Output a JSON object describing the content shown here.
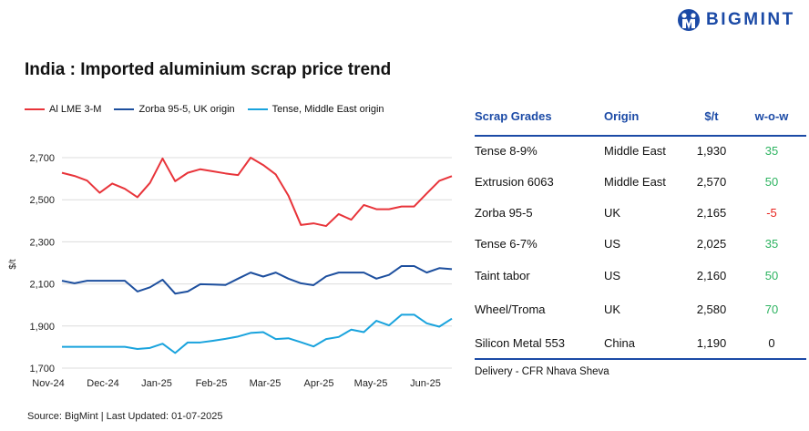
{
  "brand": {
    "name": "BIGMINT",
    "color": "#1b4aa6"
  },
  "title": "India : Imported aluminium scrap price trend",
  "source": "Source: BigMint | Last Updated: 01-07-2025",
  "chart_data": {
    "type": "line",
    "title": "India : Imported aluminium scrap price trend",
    "ylabel": "$/t",
    "ylim": [
      1700,
      2700
    ],
    "yticks": [
      "1,700",
      "1,900",
      "2,100",
      "2,300",
      "2,500",
      "2,700"
    ],
    "ytick_values": [
      1700,
      1900,
      2100,
      2300,
      2500,
      2700
    ],
    "xtick_labels": [
      "Nov-24",
      "Dec-24",
      "Jan-25",
      "Feb-25",
      "Mar-25",
      "Apr-25",
      "May-25",
      "Jun-25"
    ],
    "grid": "horizontal",
    "legend": "top-left",
    "series": [
      {
        "name": "Al LME 3-M",
        "color": "#e8343a",
        "values": [
          2628,
          2613,
          2591,
          2533,
          2577,
          2552,
          2512,
          2580,
          2696,
          2588,
          2628,
          2645,
          2635,
          2625,
          2617,
          2700,
          2665,
          2620,
          2520,
          2380,
          2388,
          2375,
          2432,
          2405,
          2475,
          2455,
          2455,
          2468,
          2468,
          2530,
          2590,
          2612
        ]
      },
      {
        "name": "Zorba 95-5, UK origin",
        "color": "#1d4f9e",
        "values": [
          2115,
          2103,
          2115,
          2115,
          2115,
          2115,
          2064,
          2084,
          2120,
          2054,
          2064,
          2099,
          2097,
          2095,
          2125,
          2154,
          2135,
          2154,
          2125,
          2103,
          2094,
          2136,
          2154,
          2154,
          2154,
          2125,
          2143,
          2185,
          2185,
          2154,
          2175,
          2170
        ]
      },
      {
        "name": "Tense, Middle East origin",
        "color": "#19a3dd",
        "values": [
          1801,
          1801,
          1801,
          1801,
          1801,
          1801,
          1791,
          1796,
          1816,
          1772,
          1822,
          1822,
          1830,
          1839,
          1850,
          1867,
          1871,
          1838,
          1842,
          1823,
          1803,
          1838,
          1848,
          1883,
          1871,
          1925,
          1903,
          1954,
          1954,
          1913,
          1897,
          1935
        ]
      }
    ]
  },
  "table": {
    "headers": [
      "Scrap Grades",
      "Origin",
      "$/t",
      "w-o-w"
    ],
    "rows": [
      [
        "Tense 8-9%",
        "Middle East",
        "1,930",
        "35"
      ],
      [
        "Extrusion 6063",
        "Middle East",
        "2,570",
        "50"
      ],
      [
        "Zorba 95-5",
        "UK",
        "2,165",
        "-5"
      ],
      [
        "Tense 6-7%",
        "US",
        "2,025",
        "35"
      ],
      [
        "Taint tabor",
        "US",
        "2,160",
        "50"
      ],
      [
        "Wheel/Troma",
        "UK",
        "2,580",
        "70"
      ],
      [
        "Silicon Metal 553",
        "China",
        "1,190",
        "0"
      ]
    ],
    "note": "Delivery - CFR Nhava Sheva",
    "colors": {
      "positive": "#2db360",
      "negative": "#e8231e",
      "neutral": "#111111"
    }
  }
}
